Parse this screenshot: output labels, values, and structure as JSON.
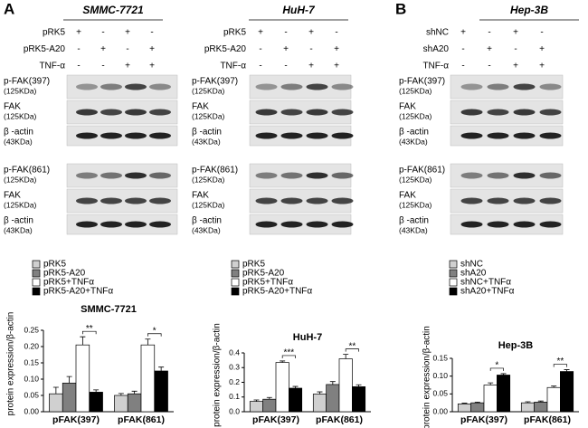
{
  "panel_labels": [
    "A",
    "B"
  ],
  "blots": [
    {
      "title": "SMMC-7721",
      "treatments": [
        {
          "name": "pRK5",
          "signs": [
            "+",
            "-",
            "+",
            "-"
          ]
        },
        {
          "name": "pRK5-A20",
          "signs": [
            "-",
            "+",
            "-",
            "+"
          ]
        },
        {
          "name": "TNF-α",
          "signs": [
            "-",
            "-",
            "+",
            "+"
          ]
        }
      ],
      "bands": [
        {
          "label": "p-FAK(397)",
          "size": "(125KDa)"
        },
        {
          "label": "FAK",
          "size": "(125KDa)"
        },
        {
          "label": "β -actin",
          "size": "(43KDa)"
        },
        {
          "label": "p-FAK(861)",
          "size": "(125KDa)"
        },
        {
          "label": "FAK",
          "size": "(125KDa)"
        },
        {
          "label": "β -actin",
          "size": "(43KDa)"
        }
      ]
    },
    {
      "title": "HuH-7",
      "treatments": [
        {
          "name": "pRK5",
          "signs": [
            "+",
            "-",
            "+",
            "-"
          ]
        },
        {
          "name": "pRK5-A20",
          "signs": [
            "-",
            "+",
            "-",
            "+"
          ]
        },
        {
          "name": "TNF-α",
          "signs": [
            "-",
            "-",
            "+",
            "+"
          ]
        }
      ],
      "bands": [
        {
          "label": "p-FAK(397)",
          "size": "(125KDa)"
        },
        {
          "label": "FAK",
          "size": "(125KDa)"
        },
        {
          "label": "β -actin",
          "size": "(43KDa)"
        },
        {
          "label": "p-FAK(861)",
          "size": "(125KDa)"
        },
        {
          "label": "FAK",
          "size": "(125KDa)"
        },
        {
          "label": "β -actin",
          "size": "(43KDa)"
        }
      ]
    },
    {
      "title": "Hep-3B",
      "treatments": [
        {
          "name": "shNC",
          "signs": [
            "+",
            "-",
            "+",
            "-"
          ]
        },
        {
          "name": "shA20",
          "signs": [
            "-",
            "+",
            "-",
            "+"
          ]
        },
        {
          "name": "TNF-α",
          "signs": [
            "-",
            "-",
            "+",
            "+"
          ]
        }
      ],
      "bands": [
        {
          "label": "p-FAK(397)",
          "size": "(125KDa)"
        },
        {
          "label": "FAK",
          "size": "(125KDa)"
        },
        {
          "label": "β -actin",
          "size": "(43KDa)"
        },
        {
          "label": "p-FAK(861)",
          "size": "(125KDa)"
        },
        {
          "label": "FAK",
          "size": "(125KDa)"
        },
        {
          "label": "β -actin",
          "size": "(43KDa)"
        }
      ]
    }
  ],
  "chart_data": [
    {
      "type": "bar",
      "title": "SMMC-7721",
      "y_label": "protein expression/β-actin",
      "categories": [
        "pFAK(397)",
        "pFAK(861)"
      ],
      "significance": [
        "**",
        "*"
      ],
      "ylim": [
        0,
        0.25
      ],
      "yticks": [
        {
          "value": 0,
          "label": "0.00"
        },
        {
          "value": 0.05,
          "label": "0.05"
        },
        {
          "value": 0.1,
          "label": "0.10"
        },
        {
          "value": 0.15,
          "label": "0.15"
        },
        {
          "value": 0.2,
          "label": "0.20"
        },
        {
          "value": 0.25,
          "label": "0.25"
        }
      ],
      "series": [
        {
          "name": "pRK5",
          "color": "#d0d0d0",
          "values": [
            0.055,
            0.05
          ],
          "errors": [
            0.02,
            0.006
          ]
        },
        {
          "name": "pRK5-A20",
          "color": "#808080",
          "values": [
            0.088,
            0.055
          ],
          "errors": [
            0.02,
            0.008
          ]
        },
        {
          "name": "pRK5+TNFα",
          "color": "#ffffff",
          "values": [
            0.205,
            0.205
          ],
          "errors": [
            0.025,
            0.018
          ]
        },
        {
          "name": "pRK5-A20+TNFα",
          "color": "#000000",
          "values": [
            0.06,
            0.125
          ],
          "errors": [
            0.007,
            0.012
          ]
        }
      ]
    },
    {
      "type": "bar",
      "title": "HuH-7",
      "y_label": "protein expression/β-actin",
      "categories": [
        "pFAK(397)",
        "pFAK(861)"
      ],
      "significance": [
        "***",
        "**"
      ],
      "ylim": [
        0,
        0.4
      ],
      "yticks": [
        {
          "value": 0,
          "label": "0.0"
        },
        {
          "value": 0.1,
          "label": "0.1"
        },
        {
          "value": 0.2,
          "label": "0.2"
        },
        {
          "value": 0.3,
          "label": "0.3"
        },
        {
          "value": 0.4,
          "label": "0.4"
        }
      ],
      "series": [
        {
          "name": "pRK5",
          "color": "#d0d0d0",
          "values": [
            0.07,
            0.12
          ],
          "errors": [
            0.01,
            0.015
          ]
        },
        {
          "name": "pRK5-A20",
          "color": "#808080",
          "values": [
            0.085,
            0.185
          ],
          "errors": [
            0.012,
            0.02
          ]
        },
        {
          "name": "pRK5+TNFα",
          "color": "#ffffff",
          "values": [
            0.335,
            0.36
          ],
          "errors": [
            0.01,
            0.03
          ]
        },
        {
          "name": "pRK5-A20+TNFα",
          "color": "#000000",
          "values": [
            0.16,
            0.17
          ],
          "errors": [
            0.012,
            0.013
          ]
        }
      ]
    },
    {
      "type": "bar",
      "title": "Hep-3B",
      "y_label": "protein expression/β-actin",
      "categories": [
        "pFAK(397)",
        "pFAK(861)"
      ],
      "significance": [
        "*",
        "**"
      ],
      "ylim": [
        0,
        0.15
      ],
      "yticks": [
        {
          "value": 0,
          "label": "0.00"
        },
        {
          "value": 0.05,
          "label": "0.05"
        },
        {
          "value": 0.1,
          "label": "0.10"
        },
        {
          "value": 0.15,
          "label": "0.15"
        }
      ],
      "series": [
        {
          "name": "shNC",
          "color": "#d0d0d0",
          "values": [
            0.022,
            0.025
          ],
          "errors": [
            0.002,
            0.003
          ]
        },
        {
          "name": "shA20",
          "color": "#808080",
          "values": [
            0.025,
            0.027
          ],
          "errors": [
            0.002,
            0.003
          ]
        },
        {
          "name": "shNC+TNFα",
          "color": "#ffffff",
          "values": [
            0.075,
            0.068
          ],
          "errors": [
            0.006,
            0.004
          ]
        },
        {
          "name": "shA20+TNFα",
          "color": "#000000",
          "values": [
            0.103,
            0.113
          ],
          "errors": [
            0.004,
            0.005
          ]
        }
      ]
    }
  ]
}
